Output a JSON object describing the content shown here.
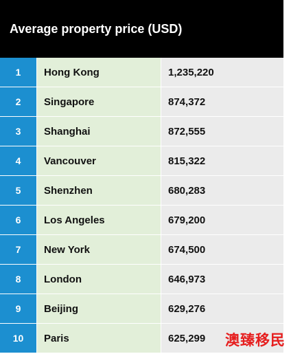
{
  "chart_data": {
    "type": "table",
    "title": "Average property price (USD)",
    "columns": [
      "",
      "",
      ""
    ],
    "rows": [
      {
        "rank": "1",
        "city": "Hong Kong",
        "price": "1,235,220",
        "value": 1235220
      },
      {
        "rank": "2",
        "city": "Singapore",
        "price": "874,372",
        "value": 874372
      },
      {
        "rank": "3",
        "city": "Shanghai",
        "price": "872,555",
        "value": 872555
      },
      {
        "rank": "4",
        "city": "Vancouver",
        "price": "815,322",
        "value": 815322
      },
      {
        "rank": "5",
        "city": "Shenzhen",
        "price": "680,283",
        "value": 680283
      },
      {
        "rank": "6",
        "city": "Los Angeles",
        "price": "679,200",
        "value": 679200
      },
      {
        "rank": "7",
        "city": "New York",
        "price": "674,500",
        "value": 674500
      },
      {
        "rank": "8",
        "city": "London",
        "price": "646,973",
        "value": 646973
      },
      {
        "rank": "9",
        "city": "Beijing",
        "price": "629,276",
        "value": 629276
      },
      {
        "rank": "10",
        "city": "Paris",
        "price": "625,299",
        "value": 625299
      }
    ]
  },
  "colors": {
    "title_bg": "#000000",
    "rank_bg": "#1c8fd0",
    "city_bg": "#e2efd9",
    "price_bg": "#ebebeb",
    "watermark": "#e61e1e"
  },
  "watermark": "澳臻移民"
}
